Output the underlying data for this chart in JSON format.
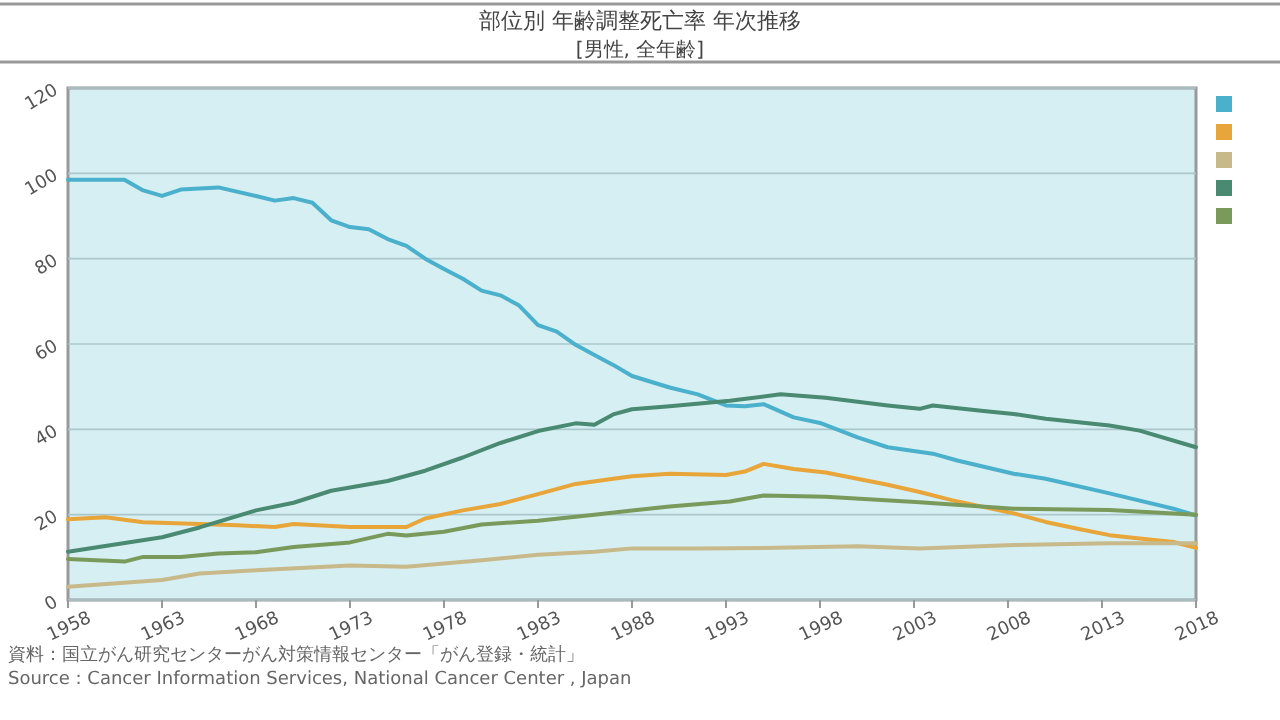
{
  "chart_data": {
    "type": "line",
    "title": "部位別 年齢調整死亡率 年次推移",
    "subtitle": "[男性, 全年齢]",
    "annotations": [
      "資料：国立がん研究センターがん対策情報センター「がん登録・統計」",
      "Source : Cancer Information Services, National Cancer Center , Japan"
    ],
    "xlim": [
      1958,
      2018
    ],
    "xticks": [
      1958,
      1963,
      1968,
      1973,
      1978,
      1983,
      1988,
      1993,
      1998,
      2003,
      2008,
      2013,
      2018
    ],
    "ylim": [
      0,
      120
    ],
    "yticks": [
      0,
      20,
      40,
      60,
      80,
      100,
      120
    ],
    "grid": "y",
    "marker": "none",
    "line_style": "solid",
    "series": [
      {
        "color": "#4bb0cc",
        "x": [
          1958,
          1961,
          1962,
          1963,
          1964,
          1966,
          1968,
          1969,
          1970,
          1971,
          1972,
          1973,
          1974,
          1975,
          1976,
          1977,
          1978,
          1979,
          1980,
          1981,
          1982,
          1983,
          1984,
          1985,
          1986,
          1987,
          1988,
          1990,
          1991.5,
          1993,
          1994,
          1995,
          1996.6,
          1998,
          2000,
          2001.6,
          2004,
          2005.3,
          2008.3,
          2010,
          2013.4,
          2016.8,
          2018
        ],
        "values": [
          98.5,
          98.5,
          96,
          94.7,
          96.2,
          96.7,
          94.7,
          93.6,
          94.2,
          93.1,
          89,
          87.4,
          86.9,
          84.6,
          83,
          80,
          77.6,
          75.3,
          72.5,
          71.4,
          69,
          64.4,
          62.9,
          59.8,
          57.4,
          55.1,
          52.5,
          49.8,
          48.2,
          45.6,
          45.4,
          45.9,
          42.8,
          41.5,
          38.1,
          35.8,
          34.3,
          32.7,
          29.6,
          28.4,
          25,
          21.4,
          19.8
        ]
      },
      {
        "color": "#e8a53a",
        "x": [
          1958,
          1960,
          1962,
          1965,
          1967,
          1969,
          1970,
          1973,
          1976,
          1977,
          1979,
          1981,
          1983,
          1985,
          1987,
          1988,
          1990,
          1993,
          1994,
          1995,
          1996.6,
          1998.3,
          2001.6,
          2003.3,
          2005,
          2008.3,
          2010,
          2011.7,
          2013.4,
          2015,
          2016.8,
          2018
        ],
        "values": [
          18.9,
          19.4,
          18.2,
          17.8,
          17.5,
          17.1,
          17.8,
          17.1,
          17.1,
          19.1,
          21,
          22.5,
          24.8,
          27.2,
          28.4,
          29,
          29.6,
          29.3,
          30.1,
          31.9,
          30.7,
          29.9,
          27,
          25.3,
          23.4,
          20.3,
          18.3,
          16.7,
          15.2,
          14.4,
          13.6,
          12.2
        ]
      },
      {
        "color": "#c8b98a",
        "x": [
          1958,
          1963,
          1965,
          1968,
          1973,
          1976,
          1980,
          1983,
          1986,
          1988,
          1991.5,
          1995,
          2000,
          2003.3,
          2008.3,
          2013.4,
          2018
        ],
        "values": [
          3.1,
          4.7,
          6.2,
          7,
          8.1,
          7.8,
          9.3,
          10.6,
          11.3,
          12.1,
          12.1,
          12.2,
          12.6,
          12.1,
          12.9,
          13.3,
          13.3
        ]
      },
      {
        "color": "#4a8a72",
        "x": [
          1958,
          1963,
          1965,
          1968,
          1970,
          1972,
          1975,
          1977,
          1979,
          1981,
          1983,
          1985,
          1986,
          1987,
          1988,
          1990,
          1993.2,
          1995.9,
          1998.3,
          2001.6,
          2003.3,
          2004,
          2006.7,
          2008.3,
          2010,
          2013.4,
          2015,
          2018
        ],
        "values": [
          11.3,
          14.7,
          17,
          21,
          22.8,
          25.6,
          27.9,
          30.3,
          33.4,
          36.8,
          39.6,
          41.4,
          41.1,
          43.5,
          44.7,
          45.4,
          46.7,
          48.2,
          47.4,
          45.6,
          44.8,
          45.6,
          44.3,
          43.6,
          42.5,
          40.9,
          39.7,
          35.8
        ]
      },
      {
        "color": "#7a9a5c",
        "x": [
          1958,
          1961,
          1962,
          1964,
          1966,
          1968,
          1970,
          1973,
          1975,
          1976,
          1978,
          1980,
          1983,
          1986,
          1988,
          1990,
          1993.2,
          1995,
          1998.3,
          2003.3,
          2008.3,
          2013.4,
          2018
        ],
        "values": [
          9.6,
          9,
          10.1,
          10.1,
          10.9,
          11.2,
          12.4,
          13.5,
          15.5,
          15.1,
          16,
          17.7,
          18.6,
          20,
          21,
          21.9,
          23.1,
          24.5,
          24.2,
          22.9,
          21.4,
          21.1,
          20
        ]
      }
    ]
  }
}
